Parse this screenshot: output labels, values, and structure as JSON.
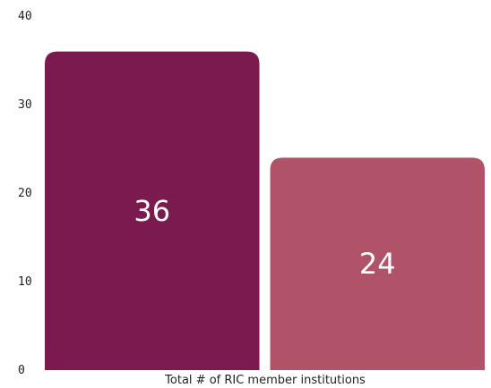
{
  "chart_data": {
    "type": "bar",
    "title": "",
    "xlabel": "Total # of RIC member institutions",
    "ylabel": "",
    "ylim": [
      0,
      40
    ],
    "yticks": [
      "0",
      "10",
      "20",
      "30",
      "40"
    ],
    "grid": false,
    "legend": "none",
    "series": [
      {
        "value": 36,
        "label": "36",
        "color": "#7b1a4f"
      },
      {
        "value": 24,
        "label": "24",
        "color": "#b05268"
      }
    ]
  }
}
